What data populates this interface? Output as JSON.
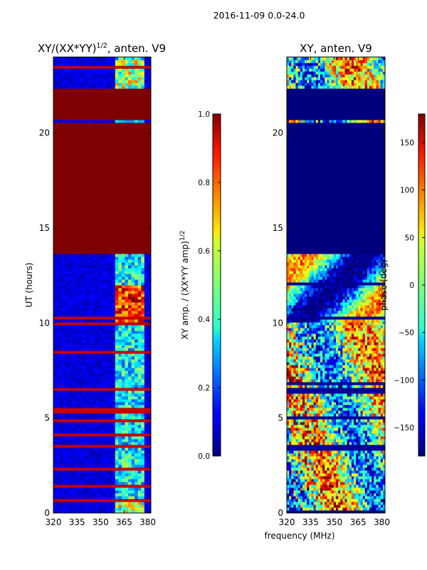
{
  "suptitle": "2016-11-09 0.0-24.0",
  "left_panel": {
    "title": "XY/(XX*YY)",
    "title_sup": "1/2",
    "title_suffix": ", anten. V9",
    "ylabel": "UT (hours)",
    "cbar_label": "XY amp. / (XX*YY amp)",
    "cbar_label_sup": "1/2"
  },
  "right_panel": {
    "title": "XY, anten. V9",
    "cbar_label": "phase (deg)"
  },
  "xlabel": "frequency (MHz)",
  "colors": {
    "saturated": "#7f0000",
    "low": "#00007f"
  },
  "chart_data": [
    {
      "type": "heatmap",
      "name": "normalized-amplitude",
      "title": "XY/(XX*YY)^1/2, anten. V9",
      "xlabel": "",
      "ylabel": "UT (hours)",
      "xlim": [
        320,
        382
      ],
      "ylim": [
        0,
        24
      ],
      "xticks": [
        320,
        335,
        350,
        365,
        380
      ],
      "yticks": [
        0,
        5,
        10,
        15,
        20
      ],
      "colormap": "jet",
      "clim": [
        0.0,
        1.0
      ],
      "colorbar_label": "XY amp. / (XX*YY amp)^1/2",
      "colorbar_ticks": [
        "0.0",
        "0.2",
        "0.4",
        "0.6",
        "0.8",
        "1.0"
      ],
      "saturated_intervals_hours": [
        [
          13.7,
          20.5
        ],
        [
          20.7,
          22.3
        ]
      ],
      "active_band_MHz": [
        360,
        378
      ]
    },
    {
      "type": "heatmap",
      "name": "phase",
      "title": "XY, anten. V9",
      "xlabel": "frequency (MHz)",
      "ylabel": "",
      "xlim": [
        320,
        382
      ],
      "ylim": [
        0,
        24
      ],
      "xticks": [
        320,
        335,
        350,
        365,
        380
      ],
      "yticks": [
        0,
        5,
        10,
        15,
        20
      ],
      "colormap": "jet",
      "clim": [
        -180,
        180
      ],
      "colorbar_label": "phase (deg)",
      "colorbar_ticks": [
        "150",
        "100",
        "50",
        "0",
        "−50",
        "−100",
        "−150"
      ],
      "low_intervals_hours": [
        [
          13.7,
          20.5
        ],
        [
          20.7,
          22.3
        ]
      ]
    }
  ]
}
